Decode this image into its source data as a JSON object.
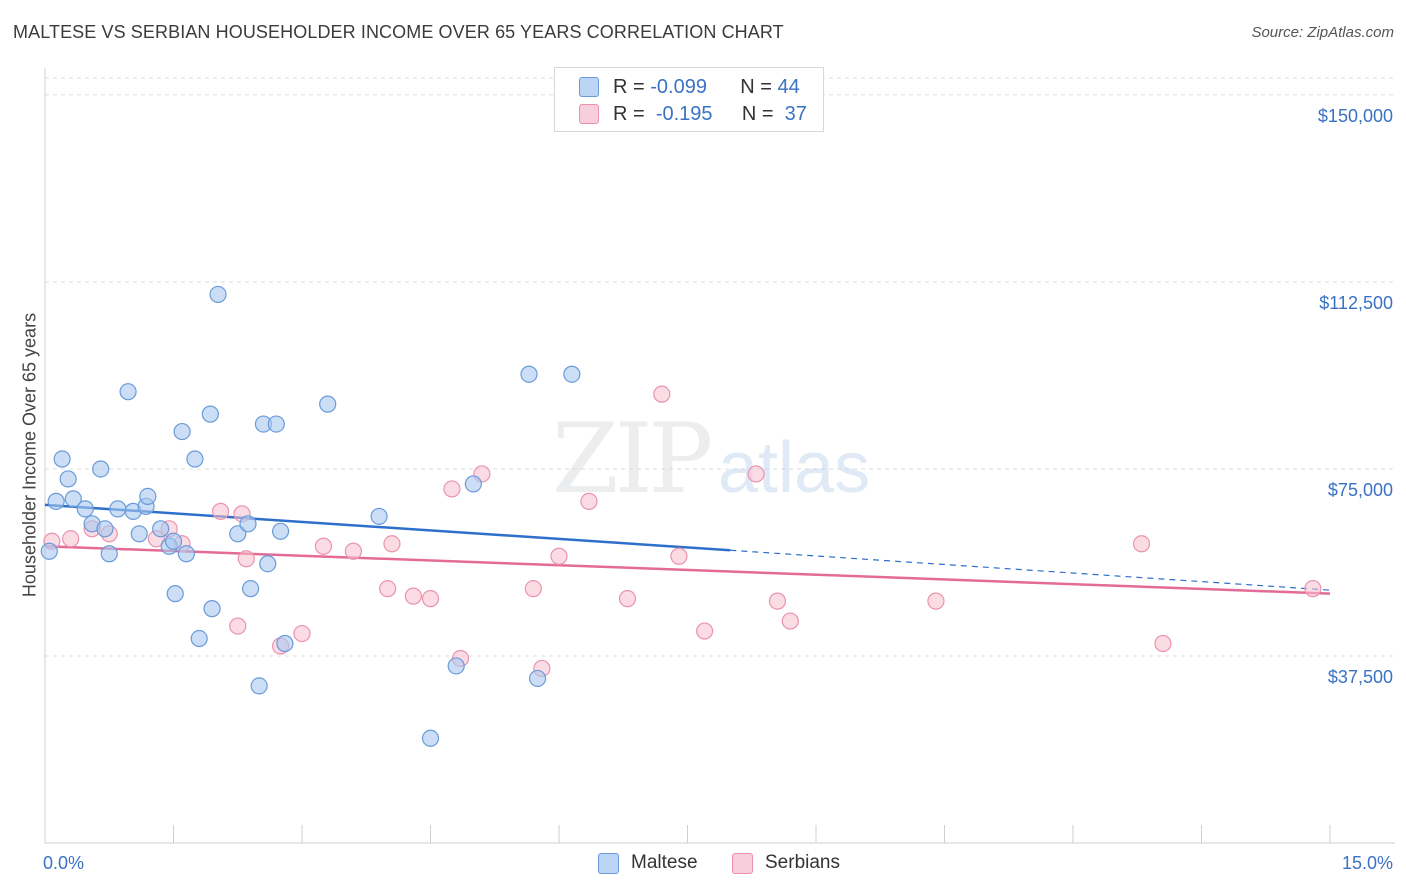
{
  "title": "MALTESE VS SERBIAN HOUSEHOLDER INCOME OVER 65 YEARS CORRELATION CHART",
  "source": "Source: ZipAtlas.com",
  "watermark": {
    "zip": "ZIP",
    "atlas": "atlas"
  },
  "legend": {
    "r_label": "R =",
    "n_label": "N =",
    "rows": [
      {
        "name": "Maltese",
        "r": "-0.099",
        "n": "44"
      },
      {
        "name": "Serbians",
        "r": "-0.195",
        "n": "37"
      }
    ]
  },
  "colors": {
    "maltese_fill": "#a9c8f0",
    "maltese_stroke": "#6a9bd8",
    "maltese_line": "#2f6fcc",
    "serbian_fill": "#f7bfd0",
    "serbian_stroke": "#ea93ad",
    "serbian_line": "#e46b95",
    "axis_label": "#3a72c4",
    "grid": "#dcdcdc"
  },
  "chart_data": {
    "type": "scatter",
    "title": "MALTESE VS SERBIAN HOUSEHOLDER INCOME OVER 65 YEARS CORRELATION CHART",
    "xlabel": "",
    "ylabel": "Householder Income Over 65 years",
    "xlim": [
      0.0,
      15.0
    ],
    "ylim": [
      0,
      155000
    ],
    "x_tick_labels": [
      "0.0%",
      "15.0%"
    ],
    "y_ticks": [
      37500,
      75000,
      112500,
      150000
    ],
    "y_tick_labels": [
      "$37,500",
      "$75,000",
      "$112,500",
      "$150,000"
    ],
    "series": [
      {
        "name": "Maltese",
        "trend": {
          "x0": 0.0,
          "y0": 67800,
          "x1": 8.0,
          "y1": 58700,
          "dashed_to_x": 15.0,
          "dashed_to_y": 50700
        },
        "points": [
          [
            0.05,
            58500
          ],
          [
            0.13,
            68500
          ],
          [
            0.2,
            77000
          ],
          [
            0.27,
            73000
          ],
          [
            0.33,
            69000
          ],
          [
            0.47,
            67000
          ],
          [
            0.55,
            64000
          ],
          [
            0.65,
            75000
          ],
          [
            0.75,
            58000
          ],
          [
            0.7,
            63000
          ],
          [
            0.85,
            67000
          ],
          [
            0.97,
            90500
          ],
          [
            1.03,
            66500
          ],
          [
            1.1,
            62000
          ],
          [
            1.18,
            67500
          ],
          [
            1.2,
            69500
          ],
          [
            1.35,
            63000
          ],
          [
            1.45,
            59500
          ],
          [
            1.5,
            60500
          ],
          [
            1.52,
            50000
          ],
          [
            1.6,
            82500
          ],
          [
            1.65,
            58000
          ],
          [
            1.75,
            77000
          ],
          [
            1.8,
            41000
          ],
          [
            1.93,
            86000
          ],
          [
            1.95,
            47000
          ],
          [
            2.02,
            110000
          ],
          [
            2.25,
            62000
          ],
          [
            2.37,
            64000
          ],
          [
            2.4,
            51000
          ],
          [
            2.5,
            31500
          ],
          [
            2.55,
            84000
          ],
          [
            2.6,
            56000
          ],
          [
            2.7,
            84000
          ],
          [
            2.75,
            62500
          ],
          [
            2.8,
            40000
          ],
          [
            3.3,
            88000
          ],
          [
            3.9,
            65500
          ],
          [
            4.5,
            21000
          ],
          [
            4.8,
            35500
          ],
          [
            5.0,
            72000
          ],
          [
            5.65,
            94000
          ],
          [
            5.75,
            33000
          ],
          [
            6.15,
            94000
          ]
        ]
      },
      {
        "name": "Serbians",
        "trend": {
          "x0": 0.0,
          "y0": 59500,
          "x1": 15.0,
          "y1": 50000
        },
        "points": [
          [
            0.08,
            60500
          ],
          [
            0.3,
            61000
          ],
          [
            0.55,
            63000
          ],
          [
            0.75,
            62000
          ],
          [
            1.3,
            61000
          ],
          [
            1.45,
            63000
          ],
          [
            1.6,
            60000
          ],
          [
            2.05,
            66500
          ],
          [
            2.25,
            43500
          ],
          [
            2.3,
            66000
          ],
          [
            2.35,
            57000
          ],
          [
            2.75,
            39500
          ],
          [
            3.0,
            42000
          ],
          [
            3.25,
            59500
          ],
          [
            3.6,
            58500
          ],
          [
            4.0,
            51000
          ],
          [
            4.05,
            60000
          ],
          [
            4.3,
            49500
          ],
          [
            4.5,
            49000
          ],
          [
            4.75,
            71000
          ],
          [
            4.85,
            37000
          ],
          [
            5.1,
            74000
          ],
          [
            5.7,
            51000
          ],
          [
            5.8,
            35000
          ],
          [
            6.0,
            57500
          ],
          [
            6.35,
            68500
          ],
          [
            6.8,
            49000
          ],
          [
            7.2,
            90000
          ],
          [
            7.4,
            57500
          ],
          [
            7.7,
            42500
          ],
          [
            8.3,
            74000
          ],
          [
            8.55,
            48500
          ],
          [
            8.7,
            44500
          ],
          [
            10.4,
            48500
          ],
          [
            12.8,
            60000
          ],
          [
            13.05,
            40000
          ],
          [
            14.8,
            51000
          ]
        ]
      }
    ]
  }
}
